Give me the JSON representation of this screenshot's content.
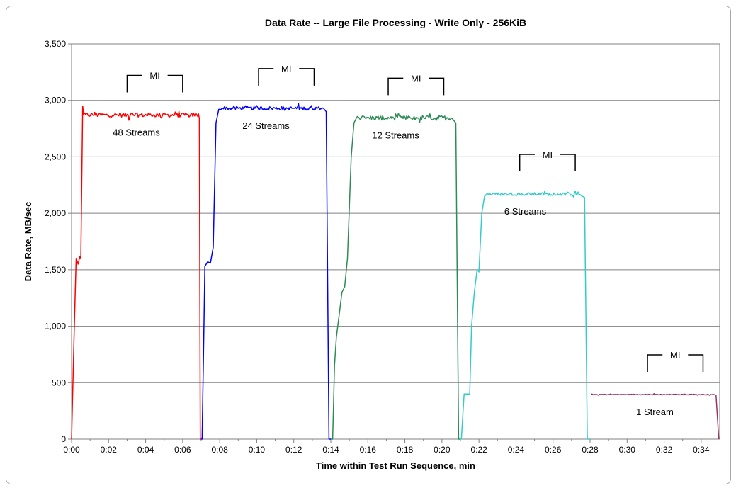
{
  "chart_data": {
    "type": "line",
    "title": "Data Rate -- Large File Processing - Write Only - 256KiB",
    "xlabel": "Time within Test Run Sequence, min",
    "ylabel": "Data Rate, MB/sec",
    "xlim_min": [
      0,
      35
    ],
    "ylim": [
      0,
      3500
    ],
    "y_ticks": [
      0,
      500,
      1000,
      1500,
      2000,
      2500,
      3000,
      3500
    ],
    "y_tick_labels": [
      "0",
      "500",
      "1,000",
      "1,500",
      "2,000",
      "2,500",
      "3,000",
      "3,500"
    ],
    "x_ticks_min": [
      0,
      2,
      4,
      6,
      8,
      10,
      12,
      14,
      16,
      18,
      20,
      22,
      24,
      26,
      28,
      30,
      32,
      34
    ],
    "x_tick_labels": [
      "0:00",
      "0:02",
      "0:04",
      "0:06",
      "0:08",
      "0:10",
      "0:12",
      "0:14",
      "0:16",
      "0:18",
      "0:20",
      "0:22",
      "0:24",
      "0:26",
      "0:28",
      "0:30",
      "0:32",
      "0:34"
    ],
    "grid": true,
    "series": [
      {
        "label": "48 Streams",
        "color": "#ff0000",
        "start_min": 0.0,
        "end_min": 7.0,
        "ramp": [
          [
            0.0,
            0
          ],
          [
            0.15,
            1000
          ],
          [
            0.25,
            1600
          ],
          [
            0.35,
            1550
          ],
          [
            0.45,
            1620
          ],
          [
            0.5,
            1600
          ],
          [
            0.6,
            2950
          ]
        ],
        "steady": {
          "from_min": 0.6,
          "to_min": 6.85,
          "level": 2870,
          "jitter": 35
        },
        "tail": [
          [
            6.9,
            2840
          ],
          [
            6.95,
            0
          ],
          [
            7.0,
            0
          ]
        ],
        "mi": [
          3.0,
          6.0
        ],
        "mi_label": "MI"
      },
      {
        "label": "24 Streams",
        "color": "#0000ff",
        "start_min": 7.0,
        "end_min": 14.0,
        "ramp": [
          [
            7.0,
            0
          ],
          [
            7.05,
            0
          ],
          [
            7.15,
            1000
          ],
          [
            7.2,
            1530
          ],
          [
            7.35,
            1570
          ],
          [
            7.5,
            1560
          ],
          [
            7.65,
            1700
          ],
          [
            7.8,
            2800
          ],
          [
            7.95,
            2920
          ]
        ],
        "steady": {
          "from_min": 7.95,
          "to_min": 13.65,
          "level": 2930,
          "jitter": 30
        },
        "tail": [
          [
            13.75,
            2900
          ],
          [
            13.9,
            0
          ],
          [
            14.0,
            0
          ]
        ],
        "mi": [
          10.1,
          13.1
        ],
        "mi_label": "MI"
      },
      {
        "label": "12 Streams",
        "color": "#2e8b57",
        "start_min": 14.0,
        "end_min": 21.0,
        "ramp": [
          [
            14.0,
            0
          ],
          [
            14.1,
            0
          ],
          [
            14.2,
            650
          ],
          [
            14.3,
            900
          ],
          [
            14.45,
            1100
          ],
          [
            14.6,
            1300
          ],
          [
            14.75,
            1350
          ],
          [
            14.9,
            1600
          ],
          [
            15.1,
            2500
          ],
          [
            15.25,
            2800
          ],
          [
            15.4,
            2850
          ]
        ],
        "steady": {
          "from_min": 15.4,
          "to_min": 20.6,
          "level": 2845,
          "jitter": 40
        },
        "tail": [
          [
            20.75,
            2800
          ],
          [
            20.9,
            0
          ],
          [
            21.0,
            0
          ]
        ],
        "mi": [
          17.1,
          20.1
        ],
        "mi_label": "MI"
      },
      {
        "label": "6 Streams",
        "color": "#33cccc",
        "start_min": 21.0,
        "end_min": 28.0,
        "ramp": [
          [
            21.0,
            0
          ],
          [
            21.05,
            0
          ],
          [
            21.2,
            400
          ],
          [
            21.5,
            400
          ],
          [
            21.6,
            1000
          ],
          [
            21.75,
            1300
          ],
          [
            21.9,
            1500
          ],
          [
            22.0,
            1480
          ],
          [
            22.15,
            2000
          ],
          [
            22.3,
            2150
          ]
        ],
        "steady": {
          "from_min": 22.3,
          "to_min": 27.55,
          "level": 2170,
          "jitter": 25
        },
        "tail": [
          [
            27.7,
            2140
          ],
          [
            27.85,
            0
          ],
          [
            28.0,
            0
          ]
        ],
        "mi": [
          24.2,
          27.2
        ],
        "mi_label": "MI"
      },
      {
        "label": "1 Stream",
        "color": "#993366",
        "start_min": 28.0,
        "end_min": 35.0,
        "ramp": [
          [
            28.05,
            395
          ]
        ],
        "steady": {
          "from_min": 28.05,
          "to_min": 34.65,
          "level": 395,
          "jitter": 6
        },
        "tail": [
          [
            34.8,
            390
          ],
          [
            34.95,
            0
          ]
        ],
        "mi": [
          31.1,
          34.1
        ],
        "mi_label": "MI"
      }
    ]
  }
}
